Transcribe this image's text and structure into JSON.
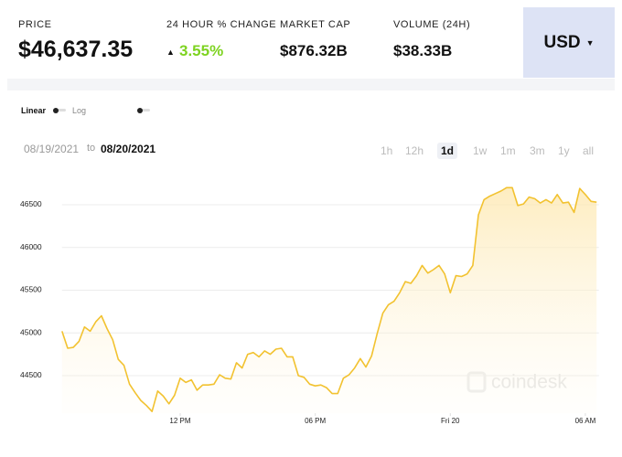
{
  "header": {
    "stats": [
      {
        "label": "PRICE",
        "value": "$46,637.35"
      },
      {
        "label": "24 HOUR % CHANGE",
        "value": "3.55%"
      },
      {
        "label": "MARKET CAP",
        "value": "$876.32B"
      },
      {
        "label": "VOLUME (24H)",
        "value": "$38.33B"
      }
    ],
    "currency": "USD"
  },
  "scale_toggle": {
    "options": [
      "Linear",
      "Log"
    ]
  },
  "date_range": {
    "from": "08/19/2021",
    "separator": "to",
    "to": "08/20/2021"
  },
  "time_ranges": {
    "options": [
      "1h",
      "12h",
      "1d",
      "1w",
      "1m",
      "3m",
      "1y",
      "all"
    ],
    "selected": 2
  },
  "chart_data": {
    "type": "line",
    "color": "#f2c230",
    "area": true,
    "grid": true,
    "watermark": "coindesk",
    "x": [
      6.75,
      7,
      7.25,
      7.5,
      7.75,
      8,
      8.25,
      8.5,
      8.75,
      9,
      9.25,
      9.5,
      9.75,
      10,
      10.25,
      10.5,
      10.75,
      11,
      11.25,
      11.5,
      11.75,
      12,
      12.25,
      12.5,
      12.75,
      13,
      13.25,
      13.5,
      13.75,
      14,
      14.25,
      14.5,
      14.75,
      15,
      15.25,
      15.5,
      15.75,
      16,
      16.25,
      16.5,
      16.75,
      17,
      17.25,
      17.5,
      17.75,
      18,
      18.25,
      18.5,
      18.75,
      19,
      19.25,
      19.5,
      19.75,
      20,
      20.25,
      20.5,
      20.75,
      21,
      21.25,
      21.5,
      21.75,
      22,
      22.25,
      22.5,
      22.75,
      23,
      23.25,
      23.5,
      23.75,
      24,
      24.25,
      24.5,
      24.75,
      25,
      25.25,
      25.5,
      25.75,
      26,
      26.25,
      26.5,
      26.75,
      27,
      27.25,
      27.5,
      27.75,
      28,
      28.25,
      28.5,
      28.75,
      29,
      29.25,
      29.5,
      29.75,
      30,
      30.25,
      30.5
    ],
    "values": [
      45020,
      44820,
      44830,
      44900,
      45070,
      45020,
      45130,
      45200,
      45050,
      44920,
      44690,
      44620,
      44400,
      44300,
      44210,
      44150,
      44080,
      44320,
      44260,
      44170,
      44270,
      44470,
      44420,
      44450,
      44330,
      44390,
      44390,
      44400,
      44510,
      44470,
      44460,
      44650,
      44590,
      44750,
      44770,
      44720,
      44790,
      44750,
      44810,
      44820,
      44720,
      44720,
      44500,
      44480,
      44400,
      44380,
      44390,
      44360,
      44290,
      44290,
      44470,
      44510,
      44590,
      44700,
      44600,
      44730,
      44990,
      45230,
      45330,
      45370,
      45470,
      45600,
      45580,
      45670,
      45790,
      45700,
      45740,
      45790,
      45690,
      45470,
      45670,
      45660,
      45690,
      45790,
      46380,
      46560,
      46600,
      46630,
      46660,
      46700,
      46700,
      46490,
      46510,
      46590,
      46570,
      46520,
      46560,
      46520,
      46620,
      46520,
      46530,
      46410,
      46690,
      46620,
      46540,
      46530
    ],
    "xlim": [
      6.75,
      30.6
    ],
    "xticks": [
      {
        "value": 12,
        "label": "12 PM"
      },
      {
        "value": 18,
        "label": "06 PM"
      },
      {
        "value": 24,
        "label": "Fri 20"
      },
      {
        "value": 30,
        "label": "06 AM"
      }
    ],
    "ylim": [
      44060,
      46870
    ],
    "yticks": [
      44500,
      45000,
      45500,
      46000,
      46500
    ]
  }
}
